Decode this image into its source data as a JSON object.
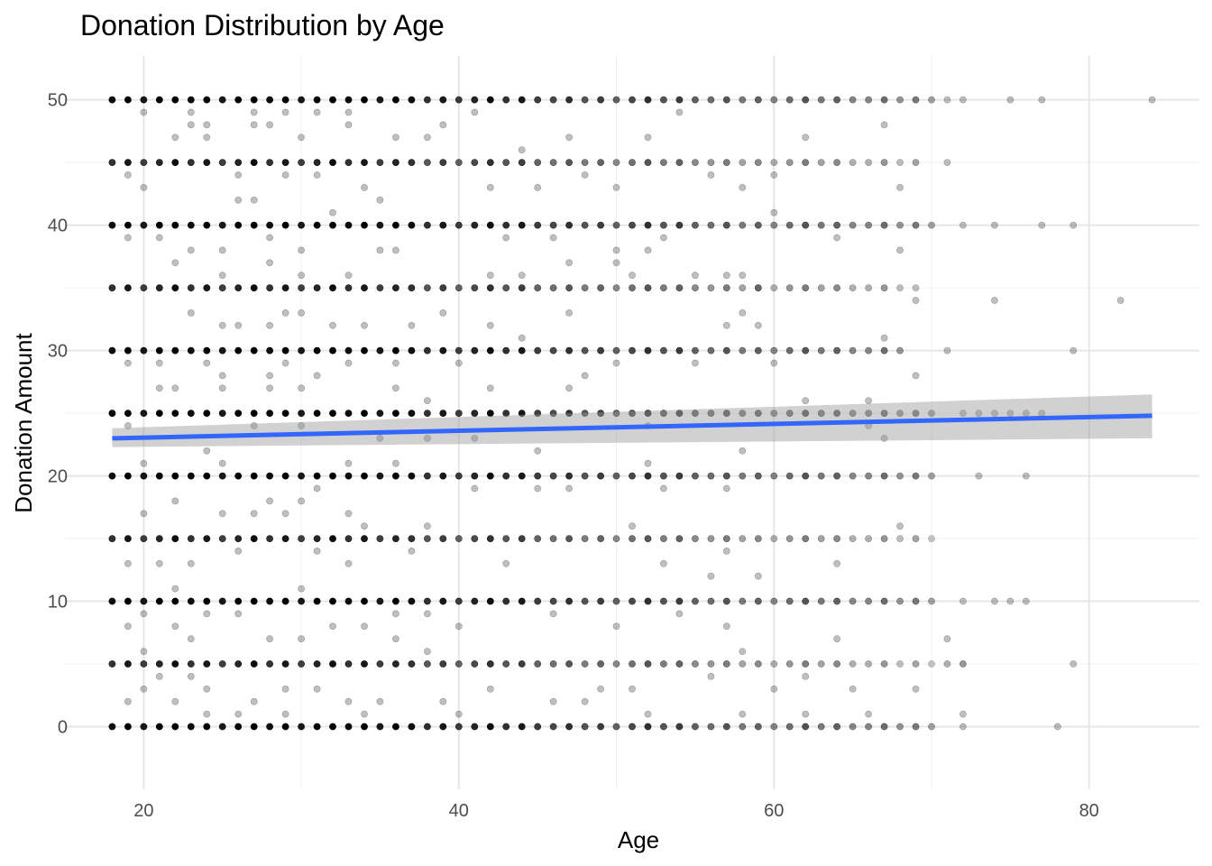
{
  "chart_data": {
    "type": "scatter",
    "title": "Donation Distribution by Age",
    "xlabel": "Age",
    "ylabel": "Donation Amount",
    "xlim": [
      15,
      87
    ],
    "ylim": [
      -5,
      53.5
    ],
    "x_ticks": [
      20,
      40,
      60,
      80
    ],
    "y_ticks": [
      0,
      10,
      20,
      30,
      40,
      50
    ],
    "x_tick_labels": [
      "20",
      "40",
      "60",
      "80"
    ],
    "y_tick_labels": [
      "0",
      "10",
      "20",
      "30",
      "40",
      "50"
    ],
    "x_minor_ticks": [
      30,
      50,
      70
    ],
    "y_minor_ticks": [
      5,
      15,
      25,
      35,
      45
    ],
    "grid": true,
    "point_color": "#000000",
    "point_opacity": 0.25,
    "trend_color": "#3366FF",
    "ribbon_color": "#999999",
    "trend": {
      "method": "linear",
      "x": [
        18,
        84
      ],
      "y": [
        23.0,
        24.8
      ],
      "ci_lower": [
        22.3,
        23.0
      ],
      "ci_upper": [
        23.8,
        26.5
      ]
    },
    "common_levels": [
      {
        "y": 50,
        "x_from": 18,
        "x_to": 70,
        "extra_x": [
          71,
          72,
          75,
          77,
          84
        ]
      },
      {
        "y": 45,
        "x_from": 18,
        "x_to": 69,
        "extra_x": [
          71
        ]
      },
      {
        "y": 40,
        "x_from": 18,
        "x_to": 70,
        "extra_x": [
          72,
          74,
          77,
          79
        ]
      },
      {
        "y": 35,
        "x_from": 18,
        "x_to": 68,
        "extra_x": [
          69
        ]
      },
      {
        "y": 30,
        "x_from": 18,
        "x_to": 68,
        "extra_x": [
          71,
          79
        ]
      },
      {
        "y": 25,
        "x_from": 18,
        "x_to": 70,
        "extra_x": [
          72,
          73,
          74,
          75,
          76,
          77
        ]
      },
      {
        "y": 20,
        "x_from": 18,
        "x_to": 70,
        "extra_x": [
          73,
          76
        ]
      },
      {
        "y": 15,
        "x_from": 18,
        "x_to": 70,
        "extra_x": []
      },
      {
        "y": 10,
        "x_from": 18,
        "x_to": 70,
        "extra_x": [
          72,
          74,
          75,
          76
        ]
      },
      {
        "y": 5,
        "x_from": 18,
        "x_to": 72,
        "extra_x": [
          79
        ]
      },
      {
        "y": 0,
        "x_from": 18,
        "x_to": 70,
        "extra_x": [
          72,
          78
        ]
      }
    ],
    "sparse_points": [
      [
        20,
        49
      ],
      [
        22,
        47
      ],
      [
        23,
        49
      ],
      [
        23,
        48
      ],
      [
        24,
        48
      ],
      [
        24,
        47
      ],
      [
        27,
        49
      ],
      [
        27,
        48
      ],
      [
        28,
        48
      ],
      [
        29,
        49
      ],
      [
        30,
        47
      ],
      [
        31,
        49
      ],
      [
        33,
        48
      ],
      [
        33,
        49
      ],
      [
        36,
        47
      ],
      [
        38,
        47
      ],
      [
        39,
        48
      ],
      [
        41,
        49
      ],
      [
        44,
        46
      ],
      [
        47,
        47
      ],
      [
        52,
        47
      ],
      [
        54,
        49
      ],
      [
        62,
        47
      ],
      [
        67,
        48
      ],
      [
        19,
        44
      ],
      [
        20,
        43
      ],
      [
        26,
        44
      ],
      [
        29,
        44
      ],
      [
        31,
        44
      ],
      [
        34,
        43
      ],
      [
        35,
        42
      ],
      [
        42,
        43
      ],
      [
        45,
        43
      ],
      [
        48,
        44
      ],
      [
        50,
        43
      ],
      [
        56,
        44
      ],
      [
        58,
        43
      ],
      [
        60,
        44
      ],
      [
        68,
        43
      ],
      [
        19,
        39
      ],
      [
        21,
        39
      ],
      [
        23,
        38
      ],
      [
        26,
        42
      ],
      [
        27,
        42
      ],
      [
        28,
        39
      ],
      [
        30,
        38
      ],
      [
        32,
        41
      ],
      [
        36,
        38
      ],
      [
        43,
        39
      ],
      [
        46,
        39
      ],
      [
        50,
        38
      ],
      [
        52,
        38
      ],
      [
        53,
        39
      ],
      [
        60,
        41
      ],
      [
        64,
        39
      ],
      [
        68,
        38
      ],
      [
        22,
        37
      ],
      [
        25,
        38
      ],
      [
        25,
        36
      ],
      [
        28,
        37
      ],
      [
        30,
        36
      ],
      [
        33,
        36
      ],
      [
        35,
        38
      ],
      [
        42,
        36
      ],
      [
        44,
        36
      ],
      [
        47,
        37
      ],
      [
        50,
        37
      ],
      [
        51,
        36
      ],
      [
        55,
        36
      ],
      [
        57,
        36
      ],
      [
        58,
        36
      ],
      [
        59,
        35
      ],
      [
        69,
        34
      ],
      [
        74,
        34
      ],
      [
        82,
        34
      ],
      [
        23,
        33
      ],
      [
        25,
        32
      ],
      [
        26,
        32
      ],
      [
        28,
        32
      ],
      [
        29,
        33
      ],
      [
        30,
        33
      ],
      [
        32,
        32
      ],
      [
        34,
        32
      ],
      [
        37,
        32
      ],
      [
        39,
        33
      ],
      [
        42,
        32
      ],
      [
        47,
        33
      ],
      [
        57,
        32
      ],
      [
        58,
        33
      ],
      [
        59,
        32
      ],
      [
        67,
        31
      ],
      [
        19,
        29
      ],
      [
        21,
        29
      ],
      [
        24,
        29
      ],
      [
        25,
        28
      ],
      [
        28,
        28
      ],
      [
        29,
        29
      ],
      [
        31,
        28
      ],
      [
        33,
        29
      ],
      [
        36,
        29
      ],
      [
        40,
        29
      ],
      [
        44,
        31
      ],
      [
        48,
        28
      ],
      [
        50,
        29
      ],
      [
        55,
        29
      ],
      [
        60,
        29
      ],
      [
        69,
        28
      ],
      [
        21,
        27
      ],
      [
        22,
        27
      ],
      [
        25,
        27
      ],
      [
        28,
        27
      ],
      [
        30,
        27
      ],
      [
        36,
        27
      ],
      [
        38,
        26
      ],
      [
        42,
        27
      ],
      [
        47,
        27
      ],
      [
        62,
        26
      ],
      [
        66,
        26
      ],
      [
        18,
        25
      ],
      [
        19,
        24
      ],
      [
        24,
        22
      ],
      [
        27,
        24
      ],
      [
        30,
        24
      ],
      [
        35,
        23
      ],
      [
        38,
        23
      ],
      [
        41,
        23
      ],
      [
        45,
        22
      ],
      [
        52,
        24
      ],
      [
        58,
        22
      ],
      [
        66,
        24
      ],
      [
        67,
        23
      ],
      [
        20,
        21
      ],
      [
        22,
        18
      ],
      [
        25,
        21
      ],
      [
        28,
        18
      ],
      [
        30,
        18
      ],
      [
        31,
        19
      ],
      [
        33,
        21
      ],
      [
        36,
        21
      ],
      [
        41,
        19
      ],
      [
        45,
        19
      ],
      [
        47,
        19
      ],
      [
        52,
        21
      ],
      [
        53,
        19
      ],
      [
        57,
        19
      ],
      [
        20,
        17
      ],
      [
        25,
        17
      ],
      [
        27,
        17
      ],
      [
        29,
        17
      ],
      [
        33,
        17
      ],
      [
        34,
        16
      ],
      [
        38,
        16
      ],
      [
        51,
        16
      ],
      [
        68,
        16
      ],
      [
        21,
        13
      ],
      [
        19,
        13
      ],
      [
        23,
        13
      ],
      [
        26,
        14
      ],
      [
        31,
        14
      ],
      [
        33,
        13
      ],
      [
        37,
        14
      ],
      [
        43,
        13
      ],
      [
        53,
        13
      ],
      [
        56,
        12
      ],
      [
        57,
        14
      ],
      [
        59,
        12
      ],
      [
        64,
        13
      ],
      [
        22,
        11
      ],
      [
        24,
        9
      ],
      [
        20,
        9
      ],
      [
        22,
        8
      ],
      [
        26,
        9
      ],
      [
        30,
        11
      ],
      [
        32,
        8
      ],
      [
        34,
        8
      ],
      [
        36,
        9
      ],
      [
        38,
        9
      ],
      [
        40,
        8
      ],
      [
        46,
        9
      ],
      [
        50,
        8
      ],
      [
        54,
        9
      ],
      [
        57,
        8
      ],
      [
        64,
        7
      ],
      [
        71,
        7
      ],
      [
        19,
        8
      ],
      [
        20,
        6
      ],
      [
        23,
        7
      ],
      [
        28,
        7
      ],
      [
        30,
        7
      ],
      [
        36,
        7
      ],
      [
        38,
        6
      ],
      [
        58,
        6
      ],
      [
        20,
        3
      ],
      [
        21,
        4
      ],
      [
        23,
        4
      ],
      [
        24,
        3
      ],
      [
        27,
        2
      ],
      [
        29,
        3
      ],
      [
        31,
        3
      ],
      [
        33,
        2
      ],
      [
        35,
        2
      ],
      [
        39,
        2
      ],
      [
        42,
        3
      ],
      [
        46,
        2
      ],
      [
        48,
        2
      ],
      [
        49,
        3
      ],
      [
        51,
        3
      ],
      [
        56,
        4
      ],
      [
        60,
        3
      ],
      [
        62,
        4
      ],
      [
        65,
        3
      ],
      [
        69,
        3
      ],
      [
        19,
        2
      ],
      [
        22,
        2
      ],
      [
        24,
        1
      ],
      [
        26,
        1
      ],
      [
        29,
        1
      ],
      [
        34,
        1
      ],
      [
        40,
        1
      ],
      [
        52,
        1
      ],
      [
        58,
        1
      ],
      [
        62,
        1
      ],
      [
        66,
        1
      ],
      [
        72,
        1
      ]
    ]
  }
}
